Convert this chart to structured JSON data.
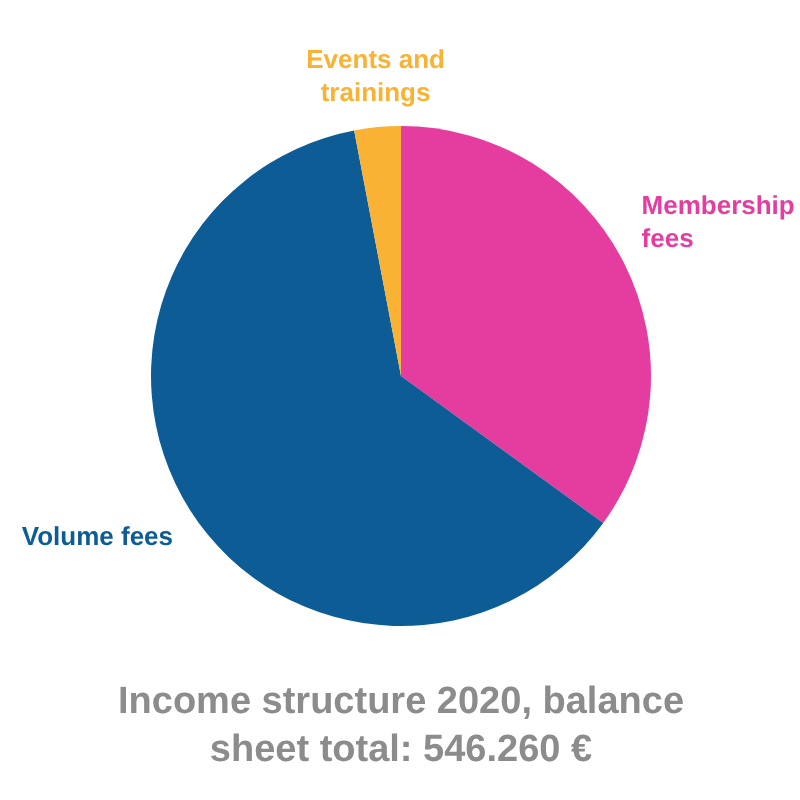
{
  "chart_data": {
    "type": "pie",
    "title": "Income structure 2020, balance sheet total: 546.260 €",
    "categories": [
      "Membership\nfees",
      "Volume fees",
      "Events and\ntrainings"
    ],
    "values": [
      35,
      62,
      3
    ],
    "colors": [
      "#e43d9f",
      "#0d5c96",
      "#f9b233"
    ]
  }
}
